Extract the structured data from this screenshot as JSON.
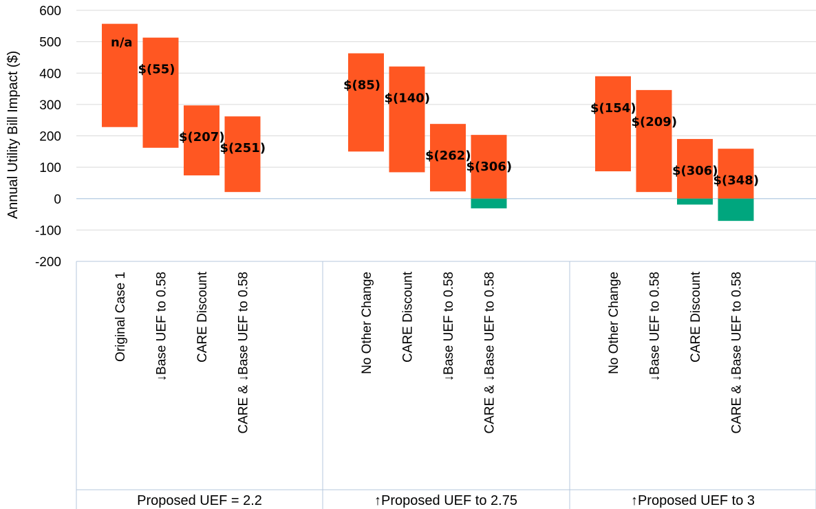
{
  "chart_data": {
    "type": "bar",
    "ylabel": "Annual Utility Bill Impact ($)",
    "ylim": [
      -200,
      600
    ],
    "yticks": [
      600,
      500,
      400,
      300,
      200,
      100,
      0,
      -100,
      -200
    ],
    "grid": true,
    "colors": {
      "positive": "#FF5722",
      "negative": "#00A67E",
      "grid": "#D9D9D9",
      "zero": "#BFD3E6",
      "axis": "#B4C7DC"
    },
    "groups": [
      {
        "label": "Proposed UEF = 2.2",
        "bars": [
          {
            "category": "Original Case 1",
            "low": 228,
            "high": 557,
            "data_label": "n/a"
          },
          {
            "category": "↓Base UEF to 0.58",
            "low": 162,
            "high": 513,
            "data_label": "$(55)"
          },
          {
            "category": "CARE Discount",
            "low": 74,
            "high": 297,
            "data_label": "$(207)"
          },
          {
            "category": "CARE & ↓Base UEF to 0.58",
            "low": 21,
            "high": 262,
            "data_label": "$(251)"
          }
        ]
      },
      {
        "label": "↑Proposed UEF to 2.75",
        "bars": [
          {
            "category": "No Other Change",
            "low": 150,
            "high": 463,
            "data_label": "$(85)"
          },
          {
            "category": "CARE Discount",
            "low": 84,
            "high": 421,
            "data_label": "$(140)"
          },
          {
            "category": "↓Base UEF to 0.58",
            "low": 23,
            "high": 238,
            "data_label": "$(262)"
          },
          {
            "category": "CARE & ↓Base UEF to 0.58",
            "low": -31,
            "high": 203,
            "data_label": "$(306)"
          }
        ]
      },
      {
        "label": "↑Proposed UEF to 3",
        "bars": [
          {
            "category": "No Other Change",
            "low": 87,
            "high": 390,
            "data_label": "$(154)"
          },
          {
            "category": "↓Base UEF to 0.58",
            "low": 21,
            "high": 346,
            "data_label": "$(209)"
          },
          {
            "category": "CARE Discount",
            "low": -19,
            "high": 190,
            "data_label": "$(306)"
          },
          {
            "category": "CARE & ↓Base UEF to 0.58",
            "low": -71,
            "high": 159,
            "data_label": "$(348)"
          }
        ]
      }
    ]
  }
}
